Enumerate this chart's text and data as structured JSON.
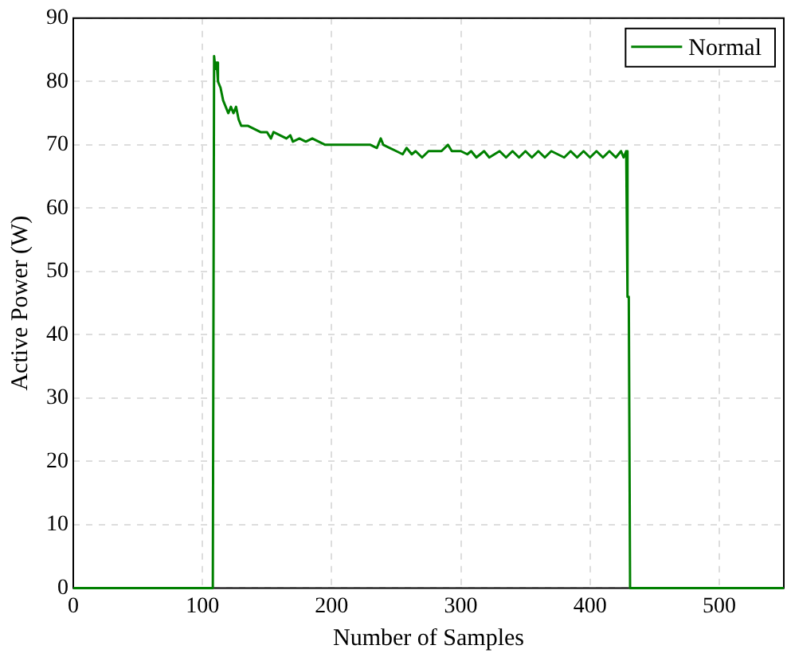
{
  "chart_data": {
    "type": "line",
    "xlabel": "Number of Samples",
    "ylabel": "Active Power (W)",
    "xlim": [
      0,
      550
    ],
    "ylim": [
      0,
      90
    ],
    "xticks": [
      0,
      100,
      200,
      300,
      400,
      500
    ],
    "yticks": [
      0,
      10,
      20,
      30,
      40,
      50,
      60,
      70,
      80,
      90
    ],
    "grid": true,
    "legend": "top right",
    "line_style": "solid",
    "marker": "none",
    "series": [
      {
        "name": "Normal",
        "color": "#008000",
        "x": [
          0,
          108,
          109,
          110,
          111,
          112,
          114,
          116,
          118,
          120,
          122,
          124,
          126,
          128,
          130,
          135,
          140,
          145,
          150,
          153,
          155,
          160,
          165,
          168,
          170,
          175,
          180,
          185,
          190,
          195,
          200,
          210,
          220,
          230,
          235,
          238,
          240,
          245,
          250,
          255,
          258,
          262,
          265,
          270,
          275,
          280,
          285,
          290,
          293,
          296,
          300,
          305,
          308,
          312,
          318,
          322,
          330,
          335,
          340,
          345,
          350,
          355,
          360,
          365,
          370,
          380,
          385,
          390,
          395,
          400,
          405,
          410,
          415,
          420,
          424,
          426,
          428,
          429,
          430,
          431,
          550
        ],
        "values": [
          0,
          0,
          84,
          82,
          83,
          80,
          79,
          77,
          76,
          75,
          76,
          75,
          76,
          74,
          73,
          73,
          72.5,
          72,
          72,
          71,
          72,
          71.5,
          71,
          71.5,
          70.5,
          71,
          70.5,
          71,
          70.5,
          70,
          70,
          70,
          70,
          70,
          69.5,
          71,
          70,
          69.5,
          69,
          68.5,
          69.5,
          68.5,
          69,
          68,
          69,
          69,
          69,
          70,
          69,
          69,
          69,
          68.5,
          69,
          68,
          69,
          68,
          69,
          68,
          69,
          68,
          69,
          68,
          69,
          68,
          69,
          68,
          69,
          68,
          69,
          68,
          69,
          68,
          69,
          68,
          69,
          68,
          69,
          46,
          46,
          0,
          0
        ]
      }
    ]
  }
}
